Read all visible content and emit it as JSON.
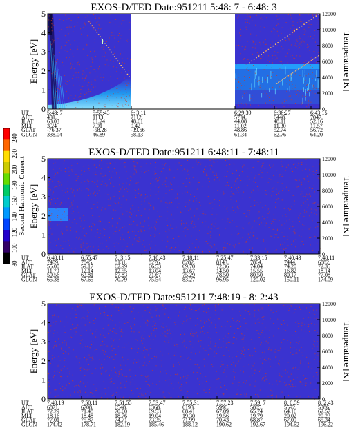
{
  "colors": {
    "background": "#3a33d0",
    "speckle": "#c83a2a",
    "gap": "#ffffff",
    "axis": "#000000"
  },
  "colorbar": {
    "label": "Second Harmonic Current",
    "ticks": [
      "240",
      "220",
      "200",
      "180",
      "160",
      "140",
      "120",
      "100",
      "80"
    ],
    "colors": [
      "#ff0000",
      "#ff6600",
      "#ffdd00",
      "#cccc00",
      "#66dd00",
      "#00cc66",
      "#00cccc",
      "#0099ff",
      "#0044ff",
      "#2200cc",
      "#330066",
      "#000000"
    ]
  },
  "panels": [
    {
      "title": "EXOS-D/TED   Date:951211  5:48: 7 - 6:48: 3",
      "ylabel_left": "Energy [eV]",
      "ylabel_right": "Temperature [K]",
      "energy_ticks": [
        "5",
        "4",
        "3",
        "2",
        "1",
        "0"
      ],
      "temp_ticks": [
        "12000",
        "10000",
        "8000",
        "6000",
        "4000",
        "2000",
        "0"
      ],
      "row_labels": [
        "UT",
        "ALT",
        "ILAT",
        "MLT",
        "GLAT",
        "GLON"
      ],
      "columns": [
        [
          "5:48: 7",
          "431.",
          "63.03",
          "3.24",
          "-76.37",
          "338.04"
        ],
        [
          "5:55:43",
          "1113.",
          "61.24",
          "7.91",
          "-58.28",
          "46.89"
        ],
        [
          "6: 3:11",
          "2112.",
          "48.61",
          "9.42",
          "-39.66",
          "58.13"
        ],
        [
          "6:29:39",
          "5734.",
          "44.08",
          "11.02",
          "48.86",
          "61.34"
        ],
        [
          "6:36:27",
          "6448.",
          "48.11",
          "11.30",
          "52.74",
          "62.76"
        ],
        [
          "6:43:15",
          "7047.",
          "52.16",
          "11.57",
          "56.72",
          "64.20"
        ]
      ]
    },
    {
      "title": "EXOS-D/TED   Date:951211  6:48:11 - 7:48:11",
      "ylabel_left": "Energy [eV]",
      "ylabel_right": "Temperature [K]",
      "energy_ticks": [
        "5",
        "4",
        "3",
        "2",
        "1",
        "0"
      ],
      "temp_ticks": [
        "12000",
        "10000",
        "8000",
        "6000",
        "4000",
        "2000",
        "0"
      ],
      "row_labels": [
        "UT",
        "ALT",
        "ILAT",
        "MLT",
        "GLAT",
        "GLON"
      ],
      "columns": [
        [
          "6:48:11",
          "7409.",
          "55.00",
          "11.79",
          "59.56",
          "65.38"
        ],
        [
          "6:55:47",
          "7845.",
          "59.17",
          "12.14",
          "63.81",
          "67.65"
        ],
        [
          "7: 3:15",
          "8131.",
          "62.99",
          "12.55",
          "67.83",
          "70.79"
        ],
        [
          "7:10:43",
          "8276.",
          "66.53",
          "13.04",
          "71.67",
          "75.54"
        ],
        [
          "7:18:11",
          "8282.",
          "69.70",
          "13.67",
          "75.29",
          "83.27"
        ],
        [
          "7:25:47",
          "8143.",
          "72.36",
          "14.50",
          "78.50",
          "96.95"
        ],
        [
          "7:33:15",
          "7864.",
          "74.04",
          "15.55",
          "80.50",
          "120.02"
        ],
        [
          "7:40:43",
          "7444.",
          "74.20",
          "16.82",
          "80.17",
          "150.11"
        ],
        [
          "7:48:11",
          "6882.",
          "72.35",
          "18.14",
          "77.08",
          "174.09"
        ]
      ]
    },
    {
      "title": "EXOS-D/TED   Date:951211  7:48:19 - 8: 2:43",
      "ylabel_left": "Energy [eV]",
      "ylabel_right": "Temperature [K]",
      "energy_ticks": [
        "5",
        "4",
        "3",
        "2",
        "1",
        "0"
      ],
      "temp_ticks": [
        "12000",
        "10000",
        "8000",
        "6000",
        "4000",
        "2000",
        "0"
      ],
      "row_labels": [
        "UT",
        "ALT",
        "ILAT",
        "MLT",
        "GLAT",
        "GLON"
      ],
      "columns": [
        [
          "7:48:19",
          "6871.",
          "72.29",
          "18.16",
          "77.01",
          "174.42"
        ],
        [
          "7:50:11",
          "6708.",
          "71.48",
          "18.48",
          "75.87",
          "178.71"
        ],
        [
          "7:51:55",
          "6548.",
          "70.60",
          "18.76",
          "74.71",
          "182.19"
        ],
        [
          "7:53:47",
          "6368.",
          "69.53",
          "19.04",
          "73.35",
          "185.46"
        ],
        [
          "7:55:31",
          "6193.",
          "68.41",
          "19.30",
          "71.99",
          "188.12"
        ],
        [
          "7:57:23",
          "5996.",
          "67.09",
          "19.56",
          "70.43",
          "190.62"
        ],
        [
          "7:59: 7",
          "5805.",
          "65.74",
          "19.79",
          "68.87",
          "192.67"
        ],
        [
          "8: 0:59",
          "5592.",
          "64.16",
          "20.02",
          "67.09",
          "194.62"
        ],
        [
          "8: 2:43",
          "5386.",
          "62.57",
          "20.23",
          "65.34",
          "196.22"
        ]
      ]
    }
  ],
  "chart_data": [
    {
      "type": "heatmap",
      "title": "EXOS-D/TED   Date:951211  5:48: 7 - 6:48: 3",
      "ylabel": "Energy [eV]",
      "ylabel_right": "Temperature [K]",
      "ylim": [
        0,
        5
      ],
      "ylim_right": [
        0,
        12000
      ],
      "x_ticks": [
        "5:48: 7",
        "5:55:43",
        "6: 3:11",
        "6:29:39",
        "6:36:27",
        "6:43:15"
      ],
      "data_gap": [
        "6: 3:11",
        "6:29:39"
      ],
      "colorbar_ticks": [
        240,
        220,
        200,
        180,
        160,
        140,
        120,
        100,
        80
      ]
    },
    {
      "type": "heatmap",
      "title": "EXOS-D/TED   Date:951211  6:48:11 - 7:48:11",
      "ylabel": "Energy [eV]",
      "ylabel_right": "Temperature [K]",
      "ylim": [
        0,
        5
      ],
      "ylim_right": [
        0,
        12000
      ],
      "x_ticks": [
        "6:48:11",
        "6:55:47",
        "7: 3:15",
        "7:10:43",
        "7:18:11",
        "7:25:47",
        "7:33:15",
        "7:40:43",
        "7:48:11"
      ]
    },
    {
      "type": "heatmap",
      "title": "EXOS-D/TED   Date:951211  7:48:19 - 8: 2:43",
      "ylabel": "Energy [eV]",
      "ylabel_right": "Temperature [K]",
      "ylim": [
        0,
        5
      ],
      "ylim_right": [
        0,
        12000
      ],
      "x_ticks": [
        "7:48:19",
        "7:50:11",
        "7:51:55",
        "7:53:47",
        "7:55:31",
        "7:57:23",
        "7:59: 7",
        "8: 0:59",
        "8: 2:43"
      ]
    }
  ]
}
